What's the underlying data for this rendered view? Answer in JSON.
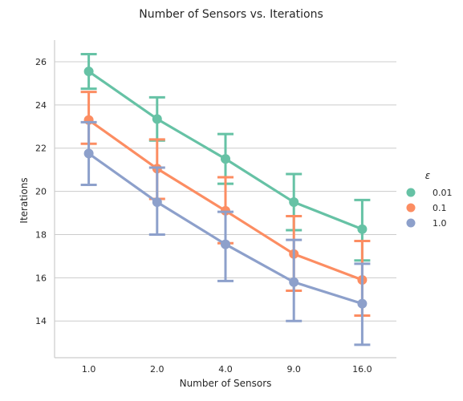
{
  "chart_data": {
    "type": "line",
    "title": "Number of Sensors vs. Iterations",
    "xlabel": "Number of Sensors",
    "ylabel": "Iterations",
    "categories": [
      "1.0",
      "2.0",
      "4.0",
      "9.0",
      "16.0"
    ],
    "yticks": [
      14,
      16,
      18,
      20,
      22,
      24,
      26
    ],
    "ylim": [
      12.3,
      27.0
    ],
    "grid": "horizontal",
    "legend": {
      "title": "ε",
      "placement": "right"
    },
    "series": [
      {
        "name": "0.01",
        "color": "#66c2a5",
        "values": [
          25.55,
          23.35,
          21.5,
          19.5,
          18.25
        ],
        "ci_low": [
          24.75,
          22.35,
          20.35,
          18.2,
          16.8
        ],
        "ci_high": [
          26.35,
          24.35,
          22.65,
          20.8,
          19.6
        ]
      },
      {
        "name": "0.1",
        "color": "#fc8d62",
        "values": [
          23.3,
          21.05,
          19.1,
          17.1,
          15.9
        ],
        "ci_low": [
          22.2,
          19.65,
          17.6,
          15.4,
          14.25
        ],
        "ci_high": [
          24.6,
          22.4,
          20.65,
          18.85,
          17.7
        ]
      },
      {
        "name": "1.0",
        "color": "#8da0cb",
        "values": [
          21.75,
          19.5,
          17.55,
          15.8,
          14.8
        ],
        "ci_low": [
          20.3,
          18.0,
          15.85,
          14.0,
          12.9
        ],
        "ci_high": [
          23.2,
          21.1,
          19.05,
          17.75,
          16.65
        ]
      }
    ]
  }
}
